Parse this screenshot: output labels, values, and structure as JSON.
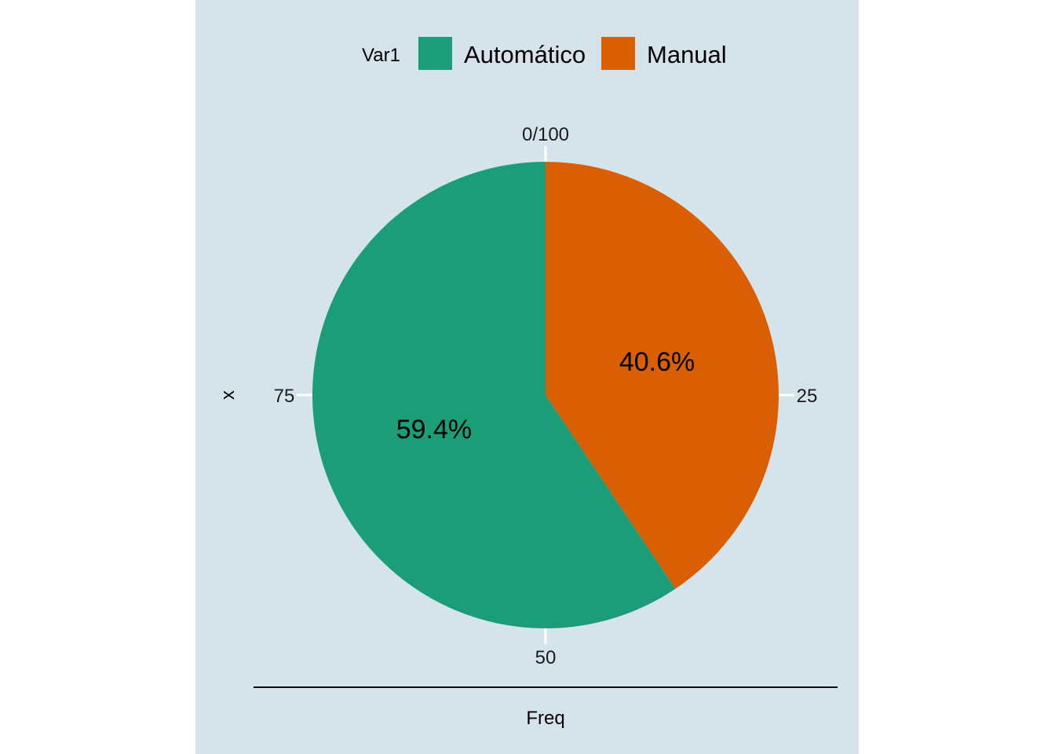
{
  "chart_data": {
    "type": "pie",
    "legend": {
      "title": "Var1",
      "position": "top",
      "entries": [
        {
          "label": "Automático",
          "color": "#1b9e77"
        },
        {
          "label": "Manual",
          "color": "#d95f02"
        }
      ]
    },
    "slices": [
      {
        "category": "Automático",
        "value": 59.4,
        "label": "59.4%",
        "color": "#1b9e77"
      },
      {
        "category": "Manual",
        "value": 40.6,
        "label": "40.6%",
        "color": "#d95f02"
      }
    ],
    "angular_axis": {
      "ticks": [
        {
          "value": 0,
          "label": "0/100"
        },
        {
          "value": 25,
          "label": "25"
        },
        {
          "value": 50,
          "label": "50"
        },
        {
          "value": 75,
          "label": "75"
        }
      ],
      "range": [
        0,
        100
      ]
    },
    "xlabel": "Freq",
    "ylabel": "x",
    "background_color": "#d5e4eb",
    "grid": false
  }
}
